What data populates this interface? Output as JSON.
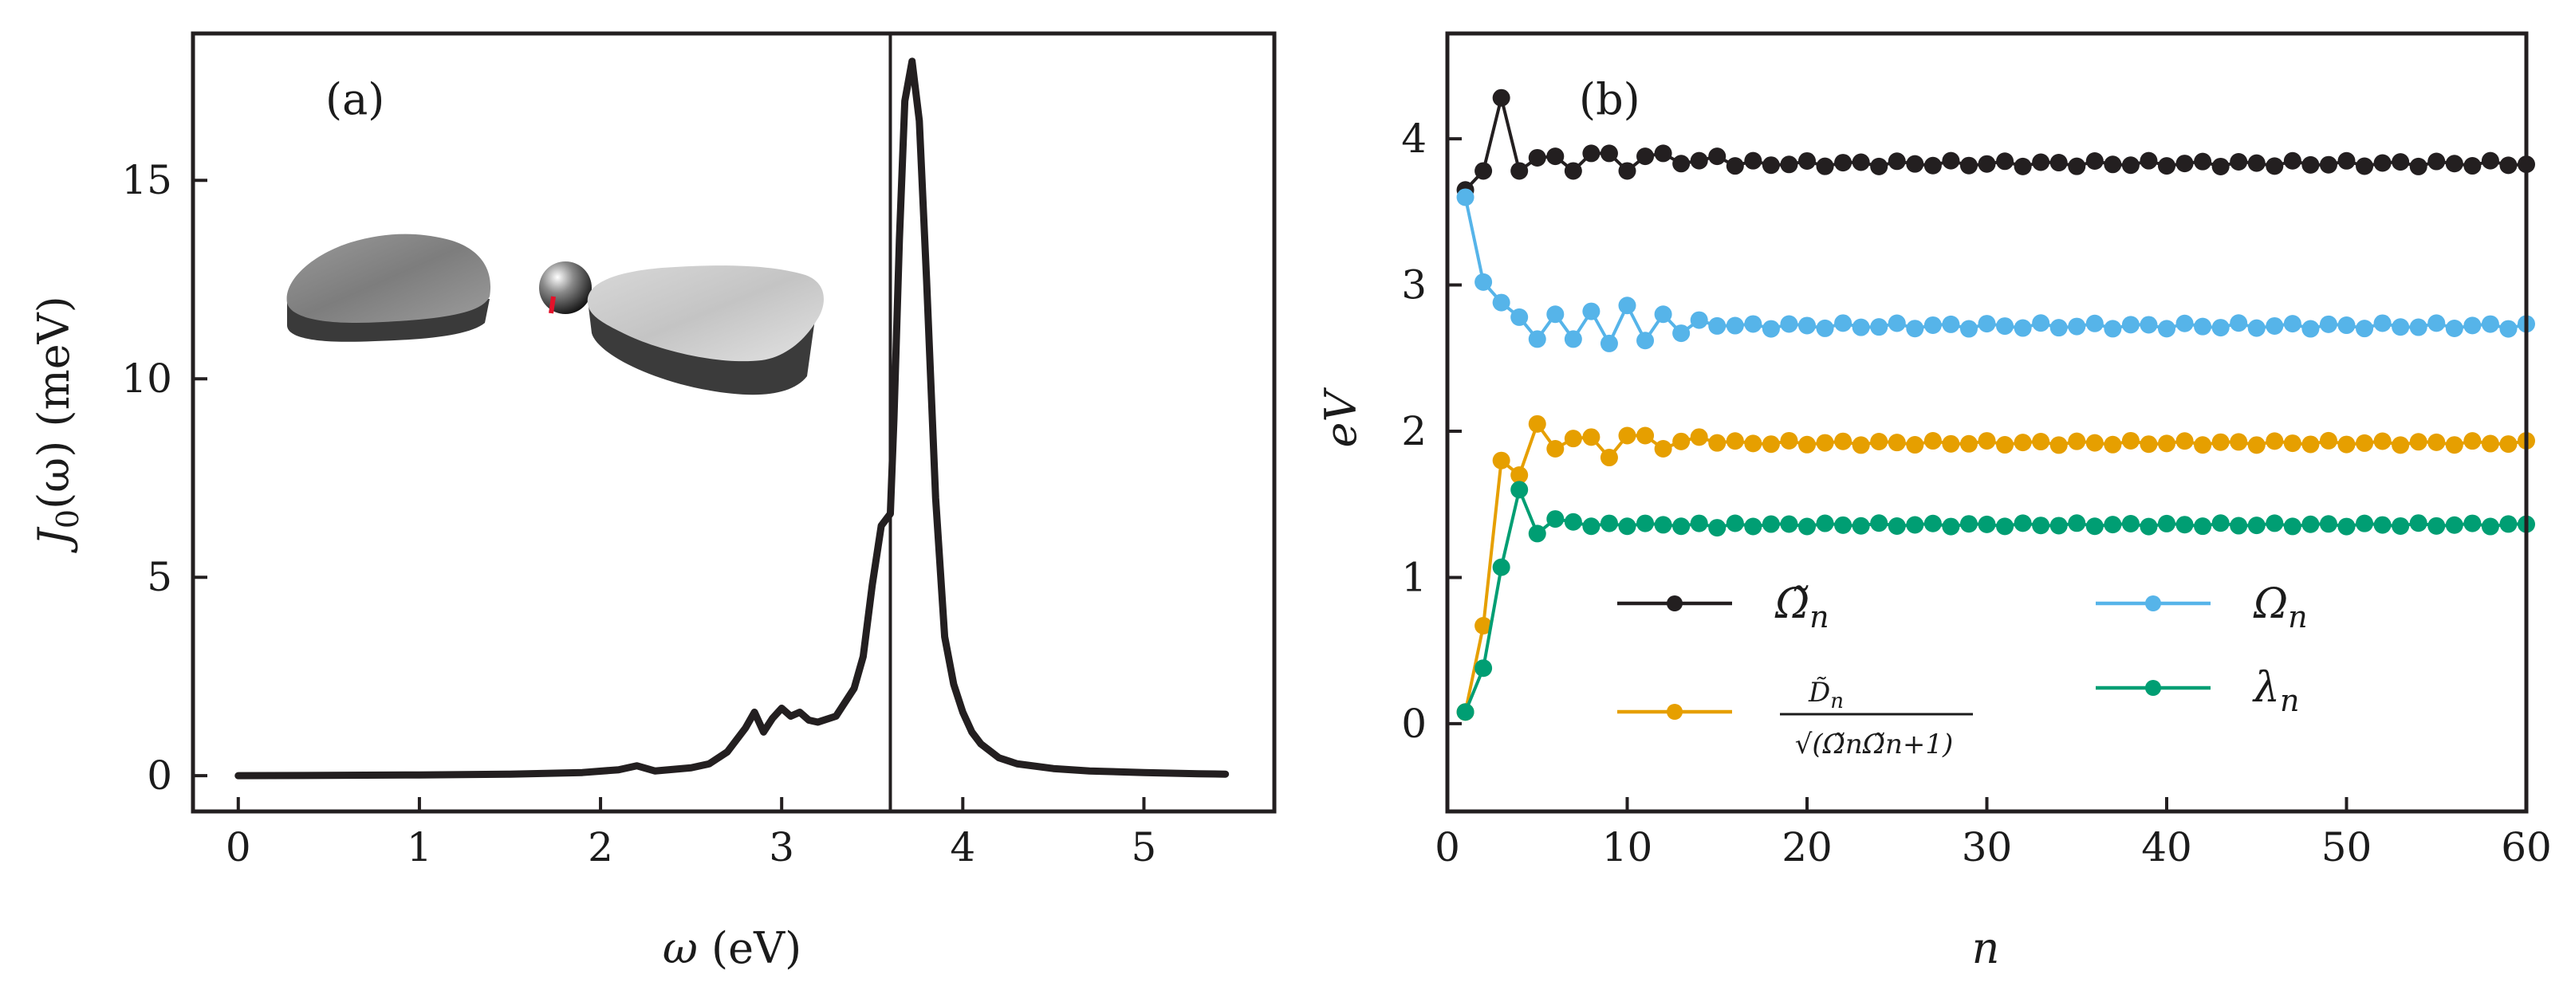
{
  "chart_data": [
    {
      "type": "line",
      "panel_label": "(a)",
      "title": "",
      "xlabel": "ω (eV)",
      "ylabel": "J0(ω) (meV)",
      "ylabel_parts": {
        "symbol": "J",
        "subscript": "0",
        "rest": "(ω) (meV)"
      },
      "xlim": [
        -0.25,
        5.72
      ],
      "ylim": [
        -0.9,
        18.7
      ],
      "xticks": [
        0,
        1,
        2,
        3,
        4,
        5
      ],
      "xtick_labels": [
        "0",
        "1",
        "2",
        "3",
        "4",
        "5"
      ],
      "yticks": [
        0,
        5,
        10,
        15
      ],
      "ytick_labels": [
        "0",
        "5",
        "10",
        "15"
      ],
      "vline_x": 3.6,
      "inset": "nanoparticle-dimer-with-molecule",
      "grid": false,
      "series": [
        {
          "name": "J0",
          "color": "#231f20",
          "x": [
            0.0,
            1.0,
            1.5,
            1.9,
            2.1,
            2.2,
            2.3,
            2.5,
            2.6,
            2.7,
            2.8,
            2.85,
            2.9,
            2.95,
            3.0,
            3.05,
            3.1,
            3.15,
            3.2,
            3.3,
            3.4,
            3.45,
            3.5,
            3.55,
            3.6,
            3.62,
            3.65,
            3.68,
            3.72,
            3.76,
            3.8,
            3.85,
            3.9,
            3.95,
            4.0,
            4.05,
            4.1,
            4.2,
            4.3,
            4.5,
            4.7,
            5.0,
            5.3,
            5.45
          ],
          "y": [
            0.0,
            0.02,
            0.04,
            0.08,
            0.15,
            0.25,
            0.12,
            0.2,
            0.3,
            0.6,
            1.2,
            1.6,
            1.1,
            1.45,
            1.7,
            1.5,
            1.6,
            1.4,
            1.35,
            1.5,
            2.2,
            3.0,
            4.8,
            6.3,
            6.6,
            9.0,
            13.5,
            17.0,
            18.0,
            16.5,
            12.5,
            7.0,
            3.5,
            2.3,
            1.6,
            1.1,
            0.8,
            0.45,
            0.3,
            0.18,
            0.12,
            0.08,
            0.05,
            0.04
          ]
        }
      ]
    },
    {
      "type": "line",
      "panel_label": "(b)",
      "title": "",
      "xlabel": "n",
      "ylabel": "eV",
      "xlim": [
        0,
        60
      ],
      "ylim": [
        -0.6,
        4.72
      ],
      "xticks": [
        0,
        10,
        20,
        30,
        40,
        50,
        60
      ],
      "xtick_labels": [
        "0",
        "10",
        "20",
        "30",
        "40",
        "50",
        "60"
      ],
      "yticks": [
        0,
        1,
        2,
        3,
        4
      ],
      "ytick_labels": [
        "0",
        "1",
        "2",
        "3",
        "4"
      ],
      "grid": false,
      "legend_position": "lower-middle",
      "n_points": 60,
      "series": [
        {
          "name": "Ω̃n",
          "legend_symbol": "Ω̃",
          "legend_subscript": "n",
          "color": "#231f20",
          "marker": "circle",
          "head": [
            3.65,
            3.78,
            4.28,
            3.78,
            3.87,
            3.88,
            3.78,
            3.9,
            3.9,
            3.78,
            3.88,
            3.9,
            3.83,
            3.85,
            3.88
          ],
          "tail_value": 3.83,
          "tail_jitter": 0.02
        },
        {
          "name": "Ωn",
          "legend_symbol": "Ω",
          "legend_subscript": "n",
          "color": "#56b4e9",
          "marker": "circle",
          "head": [
            3.6,
            3.02,
            2.88,
            2.78,
            2.63,
            2.8,
            2.63,
            2.82,
            2.6,
            2.86,
            2.62,
            2.8,
            2.67,
            2.76,
            2.72
          ],
          "tail_value": 2.72,
          "tail_jitter": 0.02
        },
        {
          "name": "D̃n/√(Ω̃nΩ̃n+1)",
          "legend_numerator": "D̃",
          "legend_numerator_subscript": "n",
          "legend_denominator": "√(Ω̃nΩ̃n+1)",
          "color": "#e69f00",
          "marker": "circle",
          "head": [
            0.08,
            0.67,
            1.8,
            1.7,
            2.05,
            1.88,
            1.95,
            1.96,
            1.82,
            1.97,
            1.97,
            1.88,
            1.93,
            1.96,
            1.92
          ],
          "tail_value": 1.92,
          "tail_jitter": 0.015
        },
        {
          "name": "λn",
          "legend_symbol": "λ",
          "legend_subscript": "n",
          "color": "#009e73",
          "marker": "circle",
          "head": [
            0.08,
            0.38,
            1.07,
            1.6,
            1.3,
            1.4,
            1.38,
            1.35,
            1.37,
            1.35,
            1.37,
            1.36,
            1.35,
            1.37,
            1.34
          ],
          "tail_value": 1.36,
          "tail_jitter": 0.012
        }
      ]
    }
  ]
}
